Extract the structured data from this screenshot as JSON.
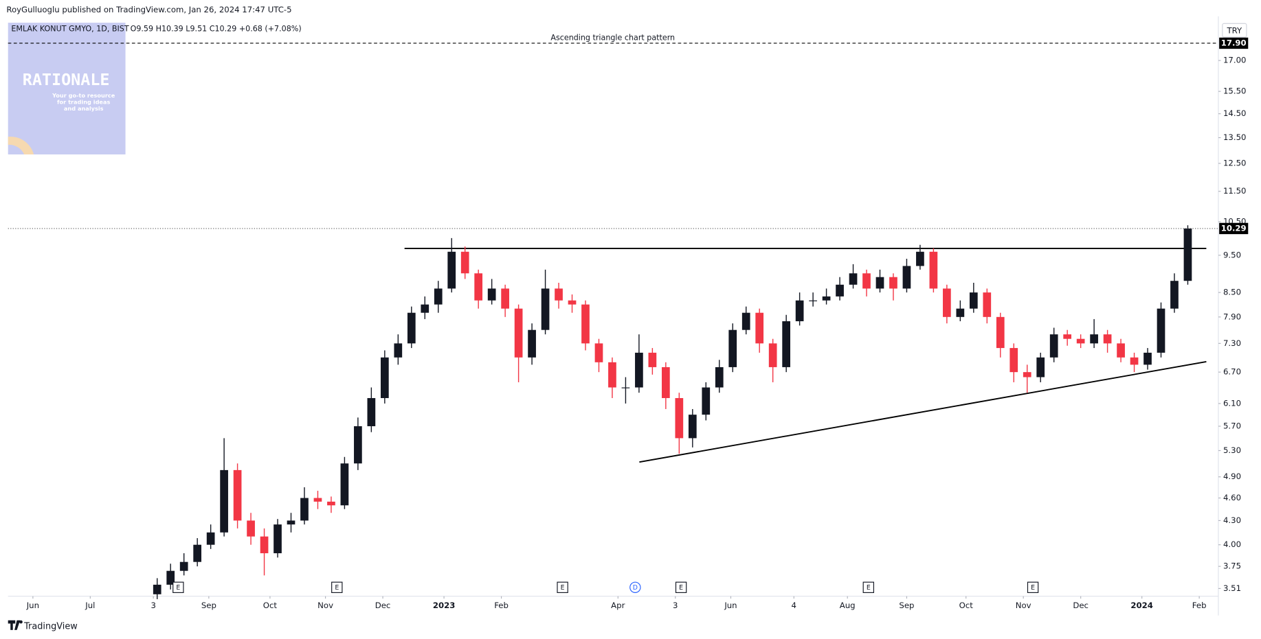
{
  "header": {
    "published": "RoyGulluoglu published on TradingView.com, Jan 26, 2024 17:47 UTC-5"
  },
  "logo": {
    "title": "RATIONALE",
    "tagline": [
      "Your go-to resource",
      "for trading ideas",
      "and analysis"
    ]
  },
  "footer": "TradingView",
  "chart_data": {
    "type": "candlestick",
    "title": "EMLAK KONUT GMYO, 1D, BIST",
    "ohlc_text": "O9.59 H10.39 L9.51 C10.29 +0.68 (+7.08%)",
    "annotation": "Ascending triangle chart pattern",
    "currency": "TRY",
    "log_scale": true,
    "up_color": "#131722",
    "down_color": "#f23645",
    "x": [
      "2022-08-05",
      "2022-08-12",
      "2022-08-19",
      "2022-08-26",
      "2022-09-02",
      "2022-09-09",
      "2022-09-16",
      "2022-09-23",
      "2022-09-30",
      "2022-10-07",
      "2022-10-14",
      "2022-10-21",
      "2022-10-28",
      "2022-11-04",
      "2022-11-11",
      "2022-11-18",
      "2022-11-25",
      "2022-12-02",
      "2022-12-09",
      "2022-12-16",
      "2022-12-23",
      "2022-12-30",
      "2023-01-06",
      "2023-01-13",
      "2023-01-20",
      "2023-01-27",
      "2023-02-03",
      "2023-02-10",
      "2023-02-17",
      "2023-02-24",
      "2023-03-03",
      "2023-03-10",
      "2023-03-17",
      "2023-03-24",
      "2023-03-31",
      "2023-04-07",
      "2023-04-14",
      "2023-04-21",
      "2023-04-28",
      "2023-05-05",
      "2023-05-12",
      "2023-05-19",
      "2023-05-26",
      "2023-06-02",
      "2023-06-09",
      "2023-06-16",
      "2023-06-23",
      "2023-06-30",
      "2023-07-07",
      "2023-07-14",
      "2023-07-21",
      "2023-07-28",
      "2023-08-04",
      "2023-08-11",
      "2023-08-18",
      "2023-08-25",
      "2023-09-01",
      "2023-09-08",
      "2023-09-15",
      "2023-09-22",
      "2023-09-29",
      "2023-10-06",
      "2023-10-13",
      "2023-10-20",
      "2023-10-27",
      "2023-11-03",
      "2023-11-10",
      "2023-11-17",
      "2023-11-24",
      "2023-12-01",
      "2023-12-08",
      "2023-12-15",
      "2023-12-22",
      "2023-12-29",
      "2024-01-05",
      "2024-01-12",
      "2024-01-19",
      "2024-01-26"
    ],
    "open": [
      3.45,
      3.55,
      3.7,
      3.8,
      4.0,
      4.15,
      5.0,
      4.3,
      4.1,
      3.9,
      4.25,
      4.3,
      4.6,
      4.55,
      4.5,
      5.1,
      5.7,
      6.2,
      7.0,
      7.3,
      8.0,
      8.2,
      8.6,
      9.6,
      9.0,
      8.3,
      8.6,
      8.1,
      7.0,
      7.6,
      8.6,
      8.3,
      8.2,
      7.3,
      6.9,
      6.4,
      6.4,
      7.1,
      6.8,
      6.2,
      5.5,
      5.9,
      6.4,
      6.8,
      7.6,
      8.0,
      7.3,
      6.8,
      7.8,
      8.3,
      8.3,
      8.4,
      8.7,
      9.0,
      8.6,
      8.9,
      8.6,
      9.2,
      9.6,
      8.6,
      7.9,
      8.1,
      8.5,
      7.9,
      7.2,
      6.7,
      6.6,
      7.0,
      7.5,
      7.4,
      7.3,
      7.5,
      7.3,
      7.0,
      6.85,
      7.1,
      8.1,
      8.8
    ],
    "high": [
      3.62,
      3.78,
      3.9,
      4.08,
      4.25,
      5.5,
      5.1,
      4.4,
      4.2,
      4.32,
      4.4,
      4.75,
      4.7,
      4.62,
      5.2,
      5.85,
      6.4,
      7.15,
      7.5,
      8.15,
      8.4,
      8.8,
      10.0,
      9.75,
      9.1,
      8.85,
      8.7,
      8.2,
      7.75,
      9.1,
      8.75,
      8.45,
      8.3,
      7.4,
      7.0,
      6.6,
      7.5,
      7.2,
      6.9,
      6.3,
      6.0,
      6.5,
      6.95,
      7.75,
      8.15,
      8.1,
      7.4,
      7.95,
      8.5,
      8.5,
      8.6,
      8.9,
      9.25,
      9.1,
      9.1,
      9.0,
      9.4,
      9.8,
      9.7,
      8.7,
      8.3,
      8.75,
      8.6,
      8.0,
      7.3,
      6.85,
      7.1,
      7.65,
      7.6,
      7.5,
      7.85,
      7.6,
      7.4,
      7.1,
      7.2,
      8.25,
      9.0,
      10.39
    ],
    "low": [
      3.4,
      3.5,
      3.65,
      3.75,
      3.95,
      4.1,
      4.2,
      4.0,
      3.65,
      3.85,
      4.15,
      4.25,
      4.45,
      4.4,
      4.45,
      5.0,
      5.6,
      6.1,
      6.85,
      7.2,
      7.85,
      8.0,
      8.5,
      8.85,
      8.1,
      8.2,
      7.9,
      6.5,
      6.85,
      7.5,
      8.1,
      8.0,
      7.15,
      6.7,
      6.2,
      6.1,
      6.3,
      6.65,
      6.0,
      5.25,
      5.35,
      5.8,
      6.3,
      6.7,
      7.5,
      7.1,
      6.5,
      6.7,
      7.7,
      8.15,
      8.2,
      8.3,
      8.6,
      8.4,
      8.5,
      8.3,
      8.5,
      9.1,
      8.5,
      7.75,
      7.8,
      8.0,
      7.75,
      7.0,
      6.5,
      6.3,
      6.5,
      6.9,
      7.25,
      7.2,
      7.2,
      7.1,
      6.9,
      6.7,
      6.75,
      7.0,
      8.0,
      8.7
    ],
    "close": [
      3.55,
      3.7,
      3.8,
      4.0,
      4.15,
      5.0,
      4.3,
      4.1,
      3.9,
      4.25,
      4.3,
      4.6,
      4.55,
      4.5,
      5.1,
      5.7,
      6.2,
      7.0,
      7.3,
      8.0,
      8.2,
      8.6,
      9.6,
      9.0,
      8.3,
      8.6,
      8.1,
      7.0,
      7.6,
      8.6,
      8.3,
      8.2,
      7.3,
      6.9,
      6.4,
      6.4,
      7.1,
      6.8,
      6.2,
      5.5,
      5.9,
      6.4,
      6.8,
      7.6,
      8.0,
      7.3,
      6.8,
      7.8,
      8.3,
      8.3,
      8.4,
      8.7,
      9.0,
      8.6,
      8.9,
      8.6,
      9.2,
      9.6,
      8.6,
      7.9,
      8.1,
      8.5,
      7.9,
      7.2,
      6.7,
      6.6,
      7.0,
      7.5,
      7.4,
      7.3,
      7.5,
      7.3,
      7.0,
      6.85,
      7.1,
      8.1,
      8.8,
      10.29
    ],
    "price_line": {
      "value": 17.9,
      "label": "17.90"
    },
    "xlim": [
      "2022-05-19",
      "2024-02-11"
    ],
    "xticks": [
      {
        "value": "2022-06-01",
        "label": "Jun"
      },
      {
        "value": "2022-07-01",
        "label": "Jul"
      },
      {
        "value": "2022-08-03",
        "label": "3"
      },
      {
        "value": "2022-09-01",
        "label": "Sep"
      },
      {
        "value": "2022-10-03",
        "label": "Oct"
      },
      {
        "value": "2022-11-01",
        "label": "Nov"
      },
      {
        "value": "2022-12-01",
        "label": "Dec"
      },
      {
        "value": "2023-01-02",
        "label": "2023"
      },
      {
        "value": "2023-02-01",
        "label": "Feb"
      },
      {
        "value": "2023-04-03",
        "label": "Apr"
      },
      {
        "value": "2023-05-03",
        "label": "3"
      },
      {
        "value": "2023-06-01",
        "label": "Jun"
      },
      {
        "value": "2023-07-04",
        "label": "4"
      },
      {
        "value": "2023-08-01",
        "label": "Aug"
      },
      {
        "value": "2023-09-01",
        "label": "Sep"
      },
      {
        "value": "2023-10-02",
        "label": "Oct"
      },
      {
        "value": "2023-11-01",
        "label": "Nov"
      },
      {
        "value": "2023-12-01",
        "label": "Dec"
      },
      {
        "value": "2024-01-02",
        "label": "2024"
      },
      {
        "value": "2024-02-01",
        "label": "Feb"
      }
    ],
    "ylim": [
      3.43,
      19.4
    ],
    "yticks": [
      3.51,
      3.75,
      {
        "value": 4,
        "label": "4.00"
      },
      {
        "value": 4.3,
        "label": "4.30"
      },
      {
        "value": 4.6,
        "label": "4.60"
      },
      {
        "value": 4.9,
        "label": "4.90"
      },
      {
        "value": 5.3,
        "label": "5.30"
      },
      {
        "value": 5.7,
        "label": "5.70"
      },
      {
        "value": 6.1,
        "label": "6.10"
      },
      {
        "value": 6.7,
        "label": "6.70"
      },
      {
        "value": 7.3,
        "label": "7.30"
      },
      {
        "value": 7.9,
        "label": "7.90"
      },
      {
        "value": 8.5,
        "label": "8.50"
      },
      {
        "value": 9.5,
        "label": "9.50"
      },
      {
        "value": 10.5,
        "label": "10.50"
      },
      {
        "value": 11.5,
        "label": "11.50"
      },
      {
        "value": 12.5,
        "label": "12.50"
      },
      {
        "value": 13.5,
        "label": "13.50"
      },
      {
        "value": 14.5,
        "label": "14.50"
      },
      {
        "value": 15.5,
        "label": "15.50"
      },
      {
        "value": 17,
        "label": "17.00"
      }
    ],
    "events": [
      {
        "label": "E",
        "x": "2022-08-16"
      },
      {
        "label": "E",
        "x": "2022-11-07"
      },
      {
        "label": "E",
        "x": "2023-03-05"
      },
      {
        "label": "D",
        "x": "2023-04-12",
        "shape": "circle"
      },
      {
        "label": "E",
        "x": "2023-05-06"
      },
      {
        "label": "E",
        "x": "2023-08-12"
      },
      {
        "label": "E",
        "x": "2023-11-06"
      }
    ]
  }
}
